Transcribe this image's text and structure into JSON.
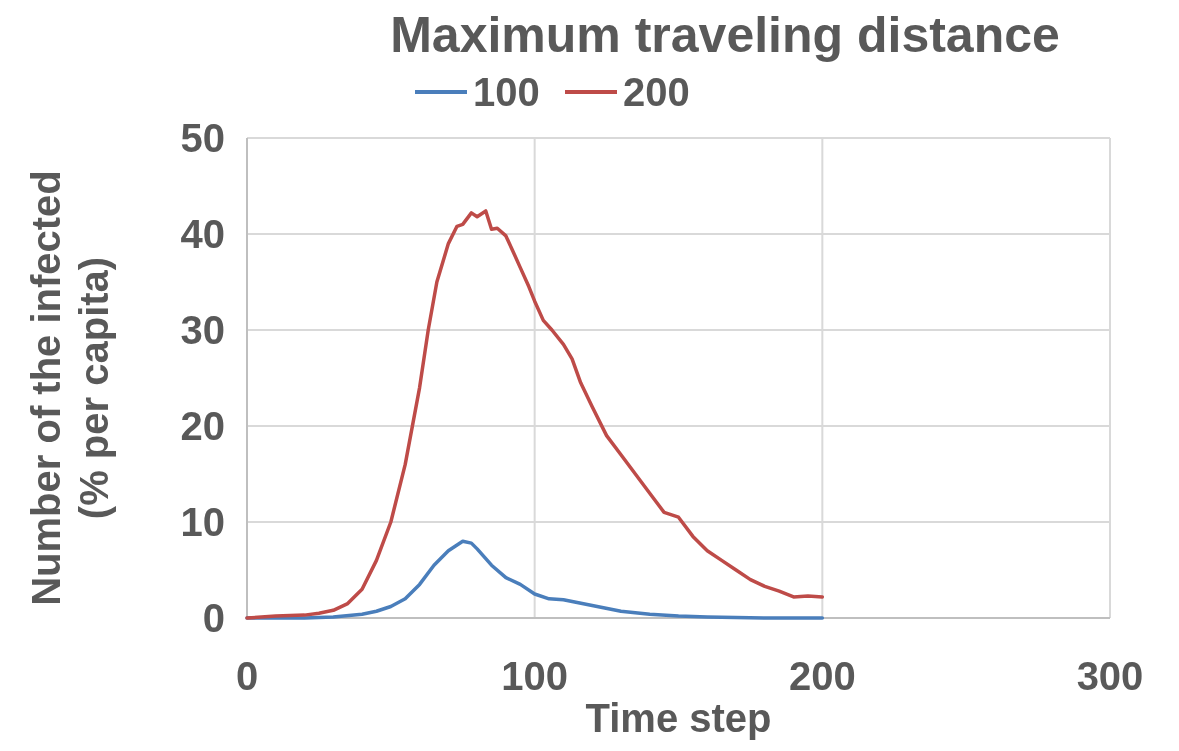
{
  "chart_data": {
    "type": "line",
    "title": "Maximum traveling distance",
    "xlabel": "Time step",
    "ylabel": "Number of the infected\n(% per capita)",
    "xlim": [
      0,
      300
    ],
    "xticks": [
      0,
      100,
      200,
      300
    ],
    "ylim": [
      0,
      50
    ],
    "yticks": [
      0,
      10,
      20,
      30,
      40,
      50
    ],
    "grid": true,
    "legend": "top",
    "marker": "none",
    "line_style": "solid",
    "series": [
      {
        "name": "100",
        "color": "#4a7ebb",
        "x": [
          0,
          20,
          30,
          40,
          45,
          50,
          55,
          60,
          65,
          70,
          75,
          78,
          80,
          85,
          90,
          95,
          100,
          105,
          110,
          120,
          130,
          140,
          150,
          160,
          180,
          200
        ],
        "values": [
          0,
          0,
          0.1,
          0.4,
          0.7,
          1.2,
          2,
          3.5,
          5.5,
          7,
          8,
          7.8,
          7.2,
          5.5,
          4.2,
          3.5,
          2.5,
          2,
          1.9,
          1.3,
          0.7,
          0.4,
          0.2,
          0.1,
          0,
          0
        ]
      },
      {
        "name": "200",
        "color": "#be4b48",
        "x": [
          0,
          10,
          20,
          25,
          30,
          35,
          40,
          45,
          50,
          55,
          60,
          63,
          66,
          70,
          73,
          75,
          78,
          80,
          83,
          85,
          87,
          90,
          92,
          95,
          98,
          100,
          103,
          106,
          110,
          113,
          116,
          120,
          125,
          130,
          135,
          140,
          145,
          150,
          155,
          160,
          165,
          170,
          175,
          180,
          185,
          190,
          195,
          200
        ],
        "values": [
          0,
          0.2,
          0.3,
          0.5,
          0.8,
          1.5,
          3,
          6,
          10,
          16,
          24,
          30,
          35,
          39,
          40.8,
          41,
          42.2,
          41.8,
          42.4,
          40.5,
          40.6,
          39.8,
          38.5,
          36.5,
          34.5,
          33,
          31,
          30,
          28.5,
          27,
          24.5,
          22,
          19,
          17,
          15,
          13,
          11,
          10.5,
          8.5,
          7,
          6,
          5,
          4,
          3.3,
          2.8,
          2.2,
          2.3,
          2.2
        ]
      }
    ]
  }
}
